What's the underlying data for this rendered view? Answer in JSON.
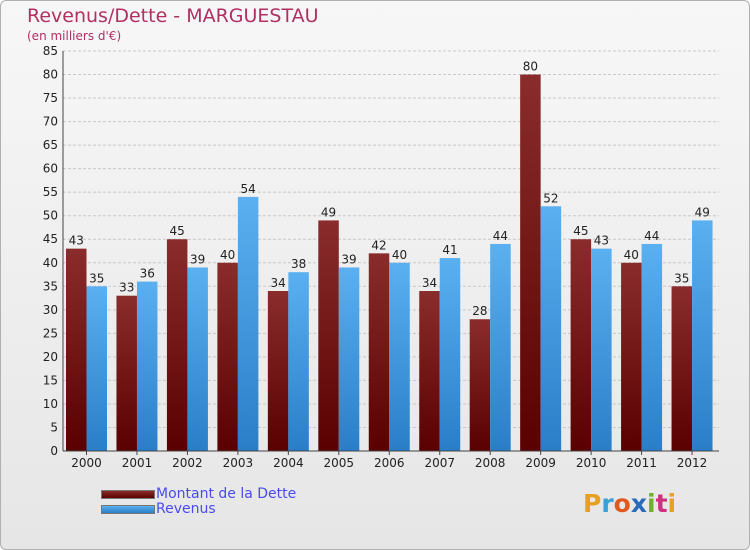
{
  "chart_data": {
    "type": "bar",
    "title": "Revenus/Dette - MARGUESTAU",
    "subtitle": "(en milliers d'€)",
    "categories": [
      "2000",
      "2001",
      "2002",
      "2003",
      "2004",
      "2005",
      "2006",
      "2007",
      "2008",
      "2009",
      "2010",
      "2011",
      "2012"
    ],
    "series": [
      {
        "name": "Montant de la Dette",
        "color": "#7a1a1a",
        "values": [
          43,
          33,
          45,
          40,
          34,
          49,
          42,
          34,
          28,
          80,
          45,
          40,
          35
        ]
      },
      {
        "name": "Revenus",
        "color": "#3a9ae0",
        "values": [
          35,
          36,
          39,
          54,
          38,
          39,
          40,
          41,
          44,
          52,
          43,
          44,
          49
        ]
      }
    ],
    "ylim": [
      0,
      85
    ],
    "yticks": [
      0,
      5,
      10,
      15,
      20,
      25,
      30,
      35,
      40,
      45,
      50,
      55,
      60,
      65,
      70,
      75,
      80,
      85
    ],
    "grid": true,
    "legend_position": "bottom-left"
  },
  "logo_text": "Proxiti"
}
